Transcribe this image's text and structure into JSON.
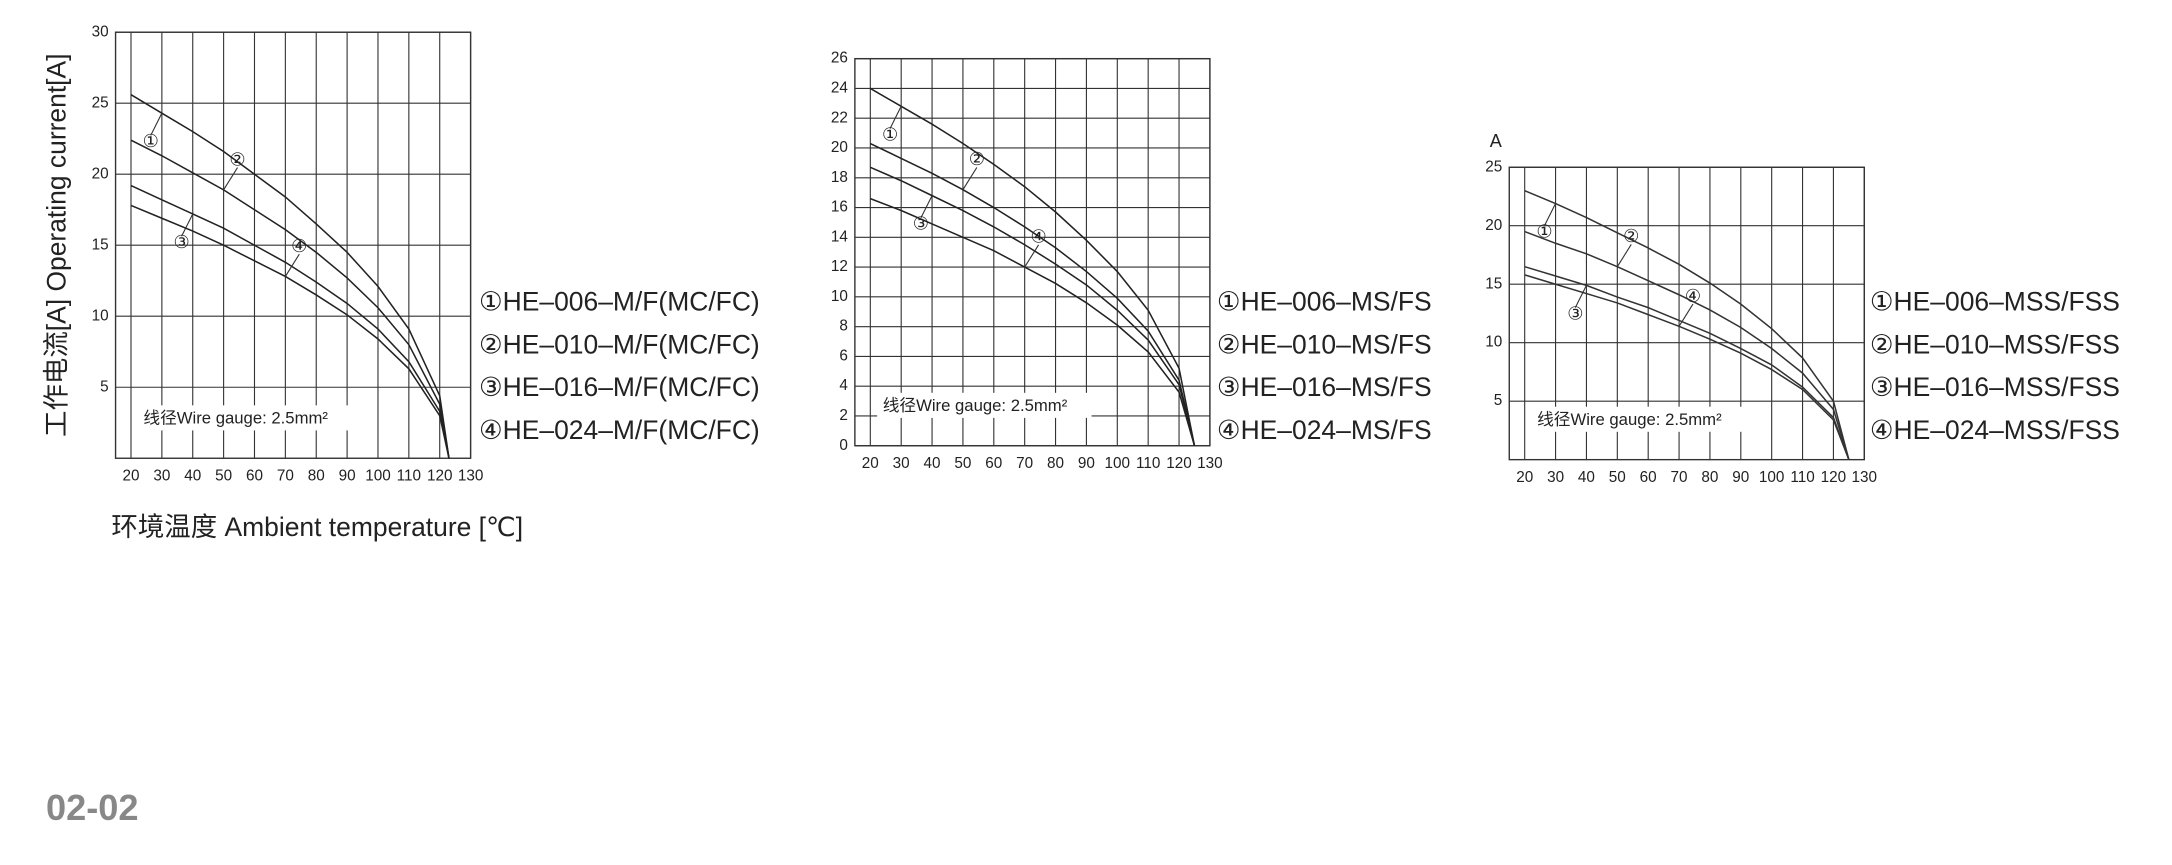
{
  "chart_data": [
    {
      "type": "line",
      "x": [
        20,
        30,
        40,
        50,
        60,
        70,
        80,
        90,
        100,
        110,
        120,
        123
      ],
      "series": [
        {
          "name": "①HE–006–M/F(MC/FC)",
          "label": "①",
          "color": "#222",
          "values": [
            25.6,
            24.3,
            23.0,
            21.6,
            20.0,
            18.4,
            16.5,
            14.5,
            12.1,
            9.1,
            4.4,
            0
          ]
        },
        {
          "name": "②HE–010–M/F(MC/FC)",
          "label": "②",
          "color": "#222",
          "values": [
            22.4,
            21.3,
            20.1,
            18.9,
            17.5,
            16.1,
            14.5,
            12.7,
            10.6,
            8.0,
            3.8,
            0
          ]
        },
        {
          "name": "③HE–016–M/F(MC/FC)",
          "label": "③",
          "color": "#222",
          "values": [
            19.2,
            18.2,
            17.2,
            16.2,
            15.0,
            13.8,
            12.4,
            10.9,
            9.1,
            6.8,
            3.3,
            0
          ]
        },
        {
          "name": "④HE–024–M/F(MC/FC)",
          "label": "④",
          "color": "#222",
          "values": [
            17.8,
            16.9,
            16.0,
            15.0,
            13.9,
            12.8,
            11.5,
            10.1,
            8.4,
            6.3,
            3.0,
            0
          ]
        }
      ],
      "xlim": [
        15,
        130
      ],
      "ylim": [
        0,
        30
      ],
      "xticks": [
        20,
        30,
        40,
        50,
        60,
        70,
        80,
        90,
        100,
        110,
        120,
        130
      ],
      "yticks": [
        5,
        10,
        15,
        20,
        25,
        30
      ],
      "grid": true,
      "annotation": "线径Wire gauge: 2.5mm²",
      "y_label": "工作电流[A]  Operating current[A]",
      "x_label": "环境温度 Ambient temperature [℃]"
    },
    {
      "type": "line",
      "x": [
        20,
        30,
        40,
        50,
        60,
        70,
        80,
        90,
        100,
        110,
        120,
        125
      ],
      "series": [
        {
          "name": "①HE–006–MS/FS",
          "label": "①",
          "color": "#222",
          "values": [
            24,
            22.8,
            21.6,
            20.3,
            18.9,
            17.4,
            15.7,
            13.8,
            11.7,
            9.1,
            5.2,
            0
          ]
        },
        {
          "name": "②HE–010–MS/FS",
          "label": "②",
          "color": "#222",
          "values": [
            20.3,
            19.3,
            18.3,
            17.2,
            16.0,
            14.7,
            13.3,
            11.7,
            9.9,
            7.7,
            4.4,
            0
          ]
        },
        {
          "name": "③HE–016–MS/FS",
          "label": "③",
          "color": "#222",
          "values": [
            18.7,
            17.8,
            16.8,
            15.8,
            14.7,
            13.5,
            12.2,
            10.8,
            9.1,
            7.1,
            4.1,
            0
          ]
        },
        {
          "name": "④HE–024–MS/FS",
          "label": "④",
          "color": "#222",
          "values": [
            16.6,
            15.8,
            14.9,
            14.0,
            13.1,
            12.0,
            10.9,
            9.6,
            8.1,
            6.3,
            3.6,
            0
          ]
        }
      ],
      "xlim": [
        15,
        130
      ],
      "ylim": [
        0,
        26
      ],
      "xticks": [
        20,
        30,
        40,
        50,
        60,
        70,
        80,
        90,
        100,
        110,
        120,
        130
      ],
      "yticks": [
        0,
        2,
        4,
        6,
        8,
        10,
        12,
        14,
        16,
        18,
        20,
        22,
        24,
        26
      ],
      "grid": true,
      "annotation": "线径Wire gauge: 2.5mm²"
    },
    {
      "type": "line",
      "x": [
        20,
        30,
        40,
        50,
        60,
        70,
        80,
        90,
        100,
        110,
        120,
        125
      ],
      "series": [
        {
          "name": "①HE–006–MSS/FSS",
          "label": "①",
          "color": "#333",
          "values": [
            23,
            21.9,
            20.7,
            19.4,
            18.1,
            16.7,
            15.1,
            13.3,
            11.2,
            8.7,
            5.0,
            0
          ]
        },
        {
          "name": "②HE–010–MSS/FSS",
          "label": "②",
          "color": "#333",
          "values": [
            19.5,
            18.5,
            17.6,
            16.5,
            15.3,
            14.1,
            12.8,
            11.3,
            9.5,
            7.4,
            4.3,
            0
          ]
        },
        {
          "name": "③HE–016–MSS/FSS",
          "label": "③",
          "color": "#333",
          "values": [
            16.5,
            15.7,
            14.9,
            13.9,
            13.0,
            11.9,
            10.8,
            9.5,
            8.1,
            6.2,
            3.6,
            0
          ]
        },
        {
          "name": "④HE–024–MSS/FSS",
          "label": "④",
          "color": "#333",
          "values": [
            15.8,
            15.0,
            14.2,
            13.4,
            12.4,
            11.4,
            10.3,
            9.1,
            7.7,
            6.0,
            3.4,
            0
          ]
        }
      ],
      "xlim": [
        15,
        130
      ],
      "ylim": [
        0,
        25
      ],
      "xticks": [
        20,
        30,
        40,
        50,
        60,
        70,
        80,
        90,
        100,
        110,
        120,
        130
      ],
      "yticks": [
        5,
        10,
        15,
        20,
        25
      ],
      "grid": true,
      "annotation": "线径Wire gauge: 2.5mm²",
      "y_unit": "A"
    }
  ],
  "page_number": "02-02"
}
